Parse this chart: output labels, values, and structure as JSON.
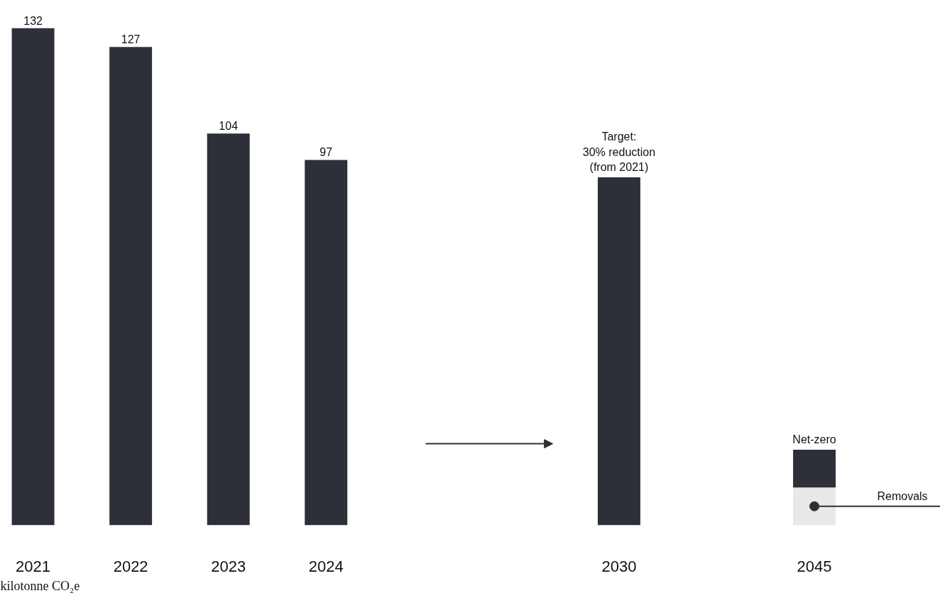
{
  "chart_data": {
    "type": "bar",
    "stacked": true,
    "categories": [
      "2021",
      "2022",
      "2023",
      "2024",
      null,
      null,
      "2030",
      null,
      "2045"
    ],
    "series": [
      {
        "color": "#e8e8e8",
        "values": [
          null,
          null,
          null,
          null,
          null,
          null,
          null,
          null,
          10
        ]
      },
      {
        "color": "#2d3039",
        "values": [
          132,
          127,
          104,
          97,
          null,
          null,
          92.4,
          null,
          10
        ],
        "value_labels": [
          "132",
          "127",
          "104",
          "97",
          null,
          null,
          null,
          null,
          null
        ]
      }
    ],
    "annotations": [
      {
        "text": "Target:\n30% reduction\n(from 2021)",
        "x": "2030",
        "y": 92.4
      },
      "Net-zero",
      "Removals",
      "kilotonne CO₂e"
    ],
    "grid": false
  }
}
